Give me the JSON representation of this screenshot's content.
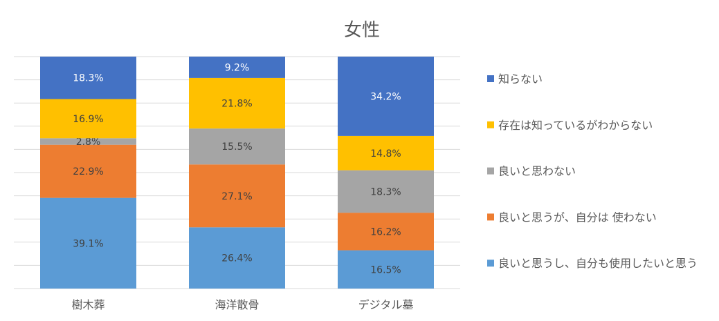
{
  "chart_data": {
    "type": "bar",
    "stacked": true,
    "title": "女性",
    "categories": [
      "樹木葬",
      "海洋散骨",
      "デジタル墓"
    ],
    "ylim": [
      0,
      100
    ],
    "grid": true,
    "legend_position": "right",
    "series": [
      {
        "name": "良いと思うし、自分も使用したいと思う",
        "color": "#5B9BD5",
        "values": [
          39.1,
          26.4,
          16.5
        ]
      },
      {
        "name": "良いと思うが、自分は 使わない",
        "color": "#ED7D31",
        "values": [
          22.9,
          27.1,
          16.2
        ]
      },
      {
        "name": "良いと思わない",
        "color": "#A5A5A5",
        "values": [
          2.8,
          15.5,
          18.3
        ]
      },
      {
        "name": "存在は知っているがわからない",
        "color": "#FFC000",
        "values": [
          16.9,
          21.8,
          14.8
        ]
      },
      {
        "name": "知らない",
        "color": "#4472C4",
        "values": [
          18.3,
          9.2,
          34.2
        ]
      }
    ],
    "value_suffix": "%"
  }
}
